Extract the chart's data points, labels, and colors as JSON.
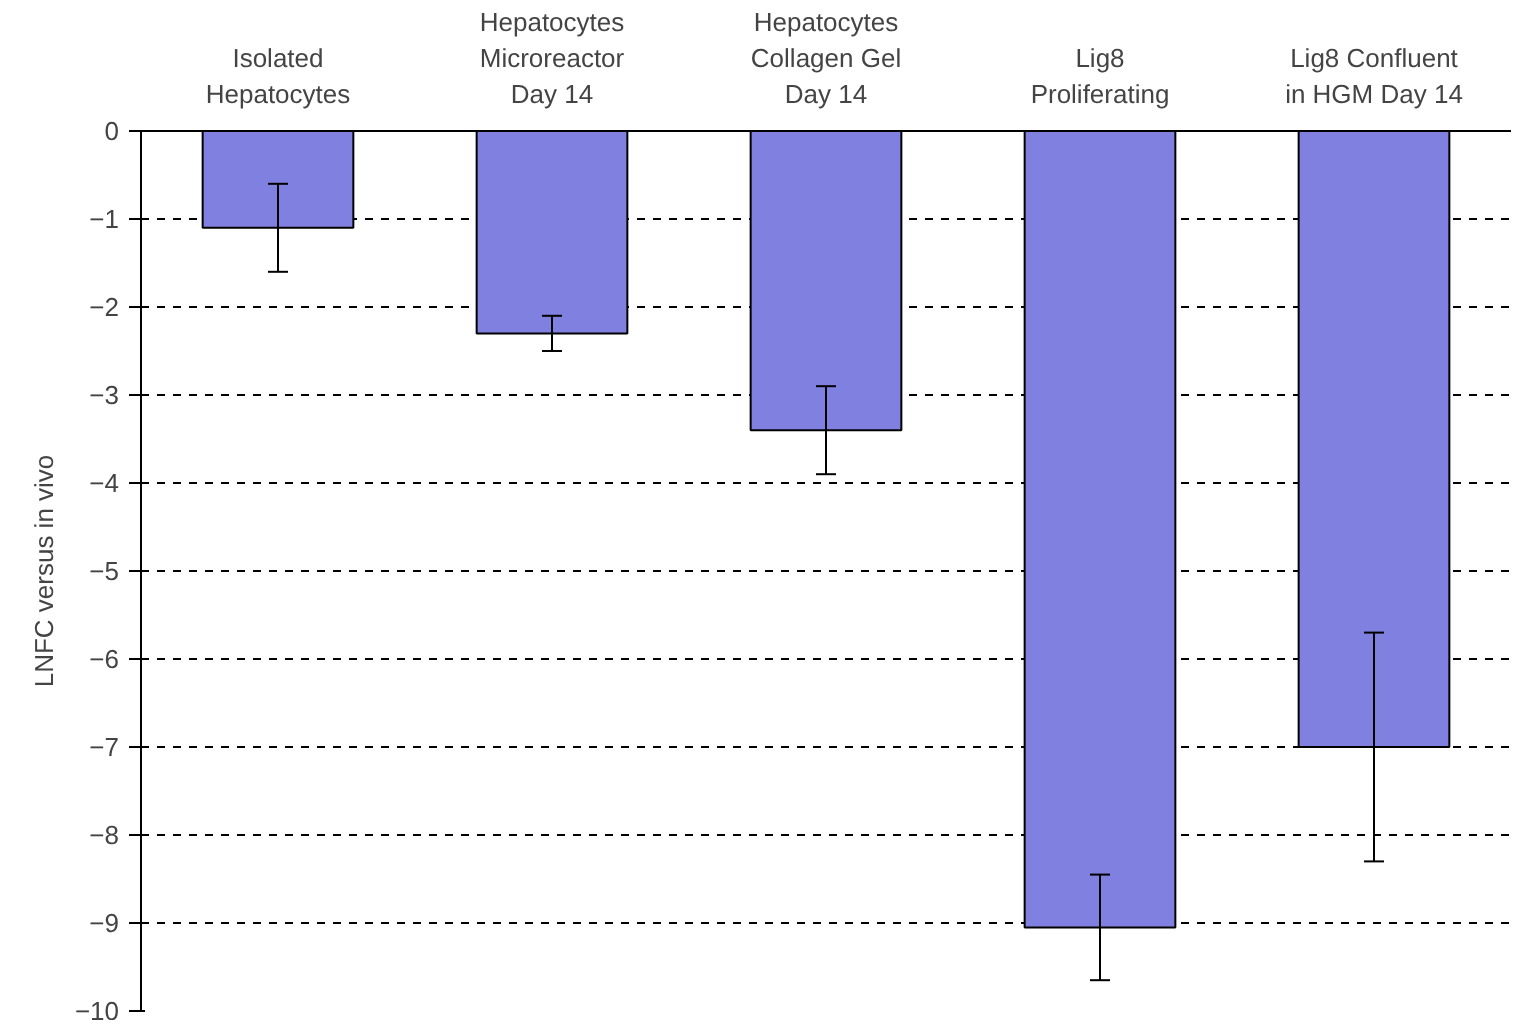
{
  "chart_data": {
    "type": "bar",
    "categories": [
      "Isolated\nHepatocytes",
      "Hepatocytes\nMicroreactor\nDay 14",
      "Hepatocytes\nCollagen Gel\nDay 14",
      "Lig8\nProliferating",
      "Lig8 Confluent\nin HGM Day 14"
    ],
    "values": [
      -1.1,
      -2.3,
      -3.4,
      -9.05,
      -7.0
    ],
    "errors": [
      0.5,
      0.2,
      0.5,
      0.6,
      1.3
    ],
    "color": "#8080e0",
    "ylabel": "LNFC versus in vivo",
    "ylim": [
      -10,
      0
    ],
    "yticks": [
      -10,
      -9,
      -8,
      -7,
      -6,
      -5,
      -4,
      -3,
      -2,
      -1,
      0
    ],
    "grid": "y",
    "line_style": "dashed"
  }
}
